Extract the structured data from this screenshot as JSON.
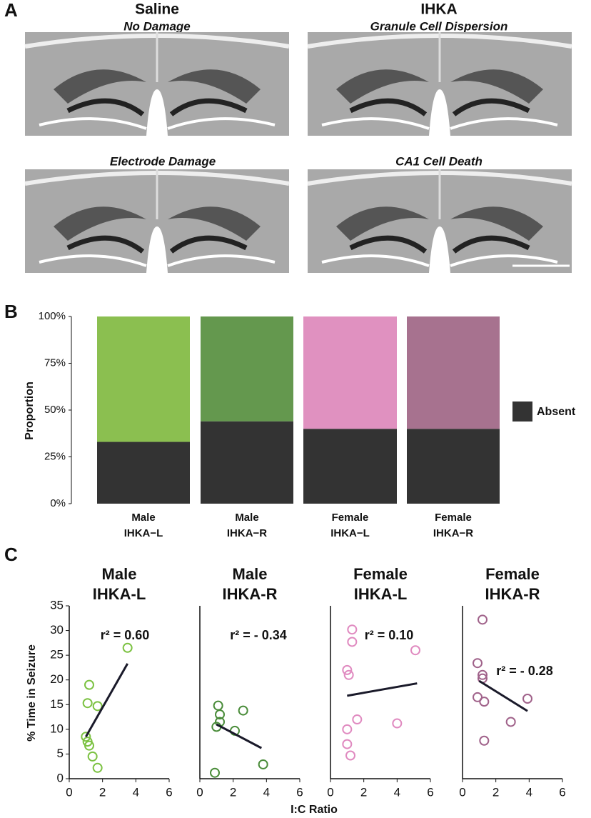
{
  "panel_labels": [
    "A",
    "B",
    "C"
  ],
  "histology": {
    "columns": [
      {
        "title": "Saline",
        "subtitle": "No Damage"
      },
      {
        "title": "IHKA",
        "subtitle": "Granule Cell Dispersion"
      }
    ],
    "captions": [
      "Electrode Damage",
      "CA1 Cell Death"
    ]
  },
  "chart_data": [
    {
      "type": "bar",
      "stacked": true,
      "ylabel": "Proportion",
      "categories": [
        "Male IHKA−L",
        "Male IHKA−R",
        "Female IHKA−L",
        "Female IHKA−R"
      ],
      "series": [
        {
          "name": "Absent",
          "color": "#333333",
          "values": [
            33,
            44,
            40,
            40
          ]
        },
        {
          "colors": [
            "#8bbf50",
            "#64984e",
            "#e091c0",
            "#a7728f"
          ],
          "values": [
            67,
            56,
            60,
            60
          ]
        }
      ],
      "ylim": [
        0,
        100
      ],
      "yticks": [
        {
          "value": 0,
          "label": "0%"
        },
        {
          "value": 25,
          "label": "25%"
        },
        {
          "value": 50,
          "label": "50%"
        },
        {
          "value": 75,
          "label": "75%"
        },
        {
          "value": 100,
          "label": "100%"
        }
      ],
      "legend": "right"
    },
    {
      "type": "scatter",
      "title": [
        "Male",
        "IHKA-L"
      ],
      "color": "#7cc242",
      "annotation": "r² = 0.60",
      "ylabel": "% Time in Seizure",
      "xlabel": "I:C Ratio",
      "x": [
        1.0,
        1.1,
        1.2,
        1.1,
        1.2,
        1.4,
        1.7,
        1.7,
        3.5
      ],
      "y": [
        8.5,
        15.3,
        19,
        7.5,
        6.7,
        4.5,
        14.7,
        2.2,
        26.5
      ],
      "fit_x": [
        1.0,
        3.5
      ],
      "fit_y": [
        8.5,
        23.3
      ],
      "xlim": [
        0,
        6
      ],
      "xticks": [
        0,
        2,
        4,
        6
      ],
      "ylim": [
        0,
        35
      ],
      "yticks": [
        0,
        5,
        10,
        15,
        20,
        25,
        30,
        35
      ]
    },
    {
      "type": "scatter",
      "title": [
        "Male",
        "IHKA-R"
      ],
      "color": "#4a8c3a",
      "annotation": "r² = - 0.34",
      "x": [
        0.9,
        1.0,
        1.1,
        1.2,
        1.2,
        2.1,
        2.6,
        3.8
      ],
      "y": [
        1.2,
        10.5,
        14.8,
        13,
        11.5,
        9.7,
        13.8,
        2.9
      ],
      "fit_x": [
        1.0,
        3.7
      ],
      "fit_y": [
        11,
        6.2
      ],
      "xlim": [
        0,
        6
      ],
      "xticks": [
        0,
        2,
        4,
        6
      ],
      "ylim": [
        0,
        35
      ]
    },
    {
      "type": "scatter",
      "title": [
        "Female",
        "IHKA-L"
      ],
      "color": "#e08ac0",
      "annotation": "r² = 0.10",
      "x": [
        1.0,
        1.1,
        1.3,
        1.3,
        1.0,
        1.0,
        1.2,
        1.6,
        4.0,
        5.1
      ],
      "y": [
        22,
        21,
        30.2,
        27.7,
        10,
        7,
        4.7,
        12,
        11.2,
        26
      ],
      "fit_x": [
        1.0,
        5.2
      ],
      "fit_y": [
        16.8,
        19.3
      ],
      "xlim": [
        0,
        6
      ],
      "xticks": [
        0,
        2,
        4,
        6
      ],
      "ylim": [
        0,
        35
      ]
    },
    {
      "type": "scatter",
      "title": [
        "Female",
        "IHKA-R"
      ],
      "color": "#a0628a",
      "annotation": "r² = - 0.28",
      "x": [
        1.2,
        0.9,
        1.2,
        1.2,
        0.9,
        1.3,
        1.3,
        2.9,
        3.9
      ],
      "y": [
        32.2,
        23.4,
        21,
        20.3,
        16.5,
        15.6,
        7.7,
        11.5,
        16.2
      ],
      "fit_x": [
        1.0,
        3.9
      ],
      "fit_y": [
        19.8,
        13.7
      ],
      "xlim": [
        0,
        6
      ],
      "xticks": [
        0,
        2,
        4,
        6
      ],
      "ylim": [
        0,
        35
      ]
    }
  ]
}
